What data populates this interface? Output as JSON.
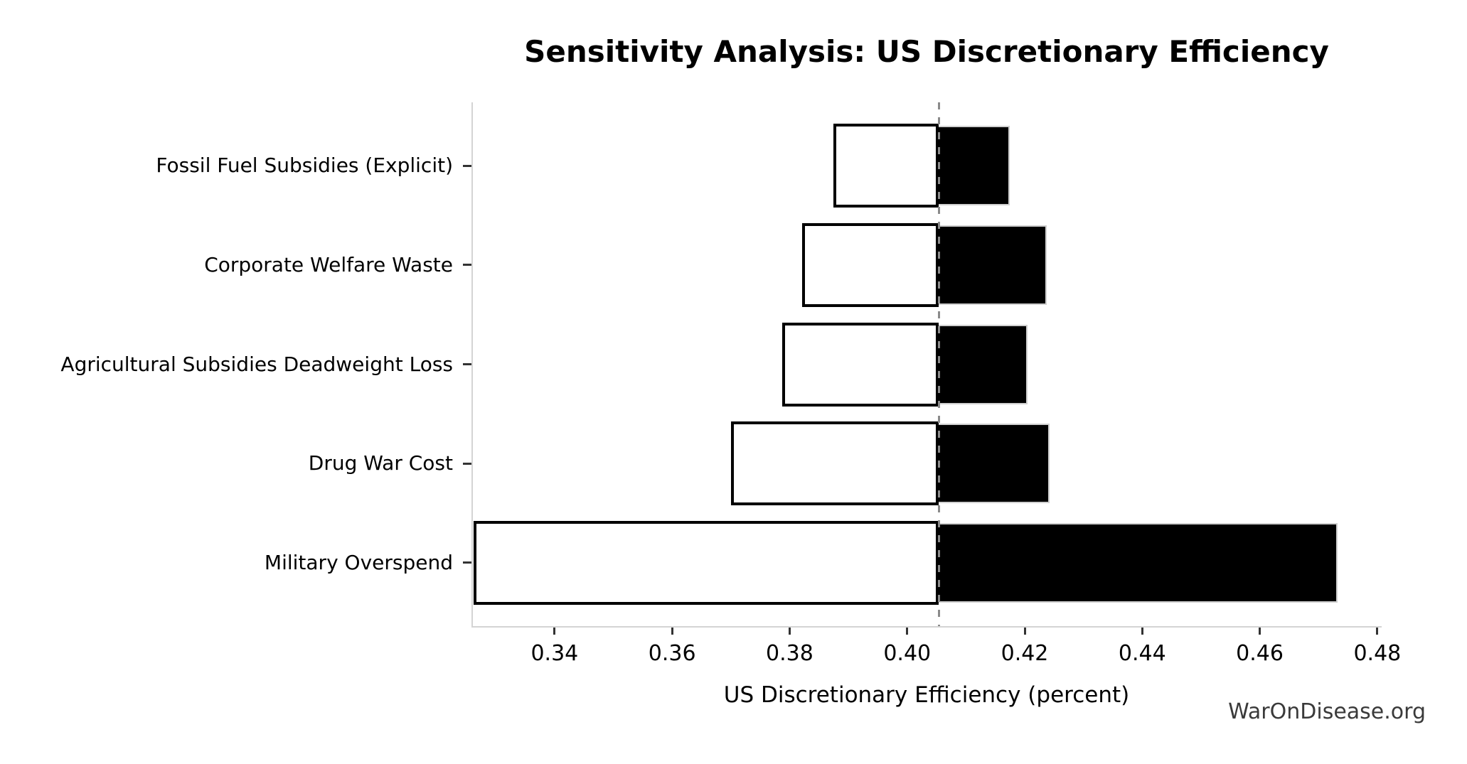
{
  "title": "Sensitivity Analysis: US Discretionary Efficiency",
  "watermark": "WarOnDisease.org",
  "chart_data": {
    "type": "bar",
    "subtype": "tornado-sensitivity",
    "title": "Sensitivity Analysis: US Discretionary Efficiency",
    "xlabel": "US Discretionary Efficiency (percent)",
    "ylabel": "",
    "categories": [
      "Fossil Fuel Subsidies (Explicit)",
      "Corporate Welfare Waste",
      "Agricultural Subsidies Deadweight Loss",
      "Drug War Cost",
      "Military Overspend"
    ],
    "baseline": 0.4054,
    "series": [
      {
        "name": "low",
        "values": [
          0.3874,
          0.3821,
          0.3787,
          0.37,
          0.3262
        ]
      },
      {
        "name": "high",
        "values": [
          0.4175,
          0.4238,
          0.4205,
          0.4242,
          0.4732
        ]
      }
    ],
    "xlim": [
      0.3261,
      0.4805
    ],
    "xticks": [
      0.34,
      0.36,
      0.38,
      0.4,
      0.42,
      0.44,
      0.46,
      0.48
    ],
    "xtick_labels": [
      "0.34",
      "0.36",
      "0.38",
      "0.40",
      "0.42",
      "0.44",
      "0.46",
      "0.48"
    ],
    "grid": false,
    "legend": false,
    "colors": {
      "bar_low_fill": "#ffffff",
      "bar_low_edge": "#000000",
      "bar_high_fill": "#000000",
      "bar_high_edge": "#cfcfcf",
      "baseline_line": "#8a8a8a",
      "spine": "#d4d4d4",
      "text": "#000000",
      "watermark_text": "#3a3a3a"
    }
  }
}
